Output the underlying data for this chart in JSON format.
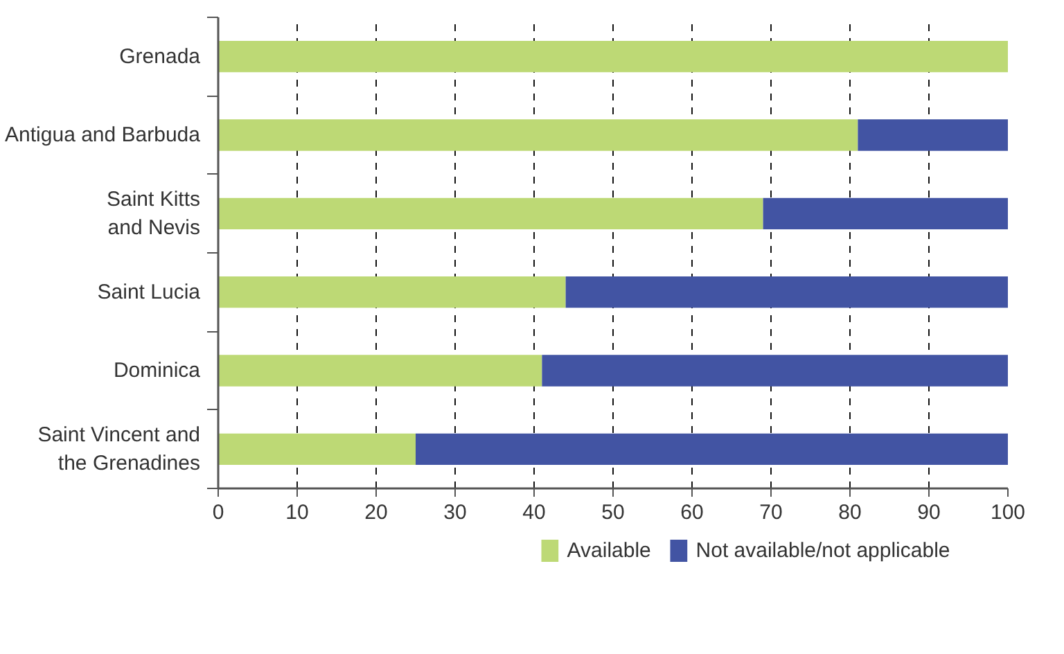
{
  "chart_data": {
    "type": "bar",
    "orientation": "horizontal",
    "stacked": true,
    "categories": [
      "Grenada",
      "Antigua and Barbuda",
      "Saint Kitts\nand Nevis",
      "Saint Lucia",
      "Dominica",
      "Saint Vincent and\nthe Grenadines"
    ],
    "series": [
      {
        "name": "Available",
        "color": "#bdd975",
        "values": [
          100,
          81,
          69,
          44,
          41,
          25
        ]
      },
      {
        "name": "Not available/not applicable",
        "color": "#4254a3",
        "values": [
          0,
          19,
          31,
          56,
          59,
          75
        ]
      }
    ],
    "xlim": [
      0,
      100
    ],
    "xticks": [
      0,
      10,
      20,
      30,
      40,
      50,
      60,
      70,
      80,
      90,
      100
    ],
    "grid": "x",
    "legend": "bottom"
  }
}
